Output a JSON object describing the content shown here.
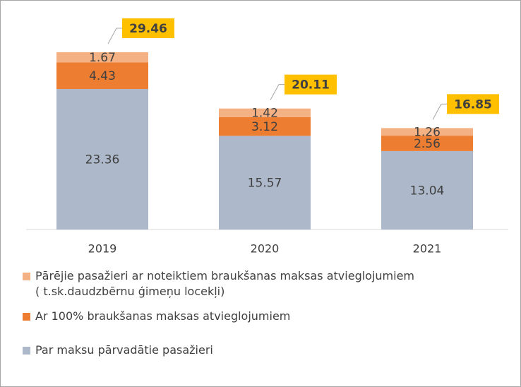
{
  "chart_data": {
    "type": "stacked-bar",
    "categories": [
      "2019",
      "2020",
      "2021"
    ],
    "series": [
      {
        "name": "Par maksu pārvadātie pasažieri",
        "color": "#adb9ca",
        "values": [
          23.36,
          15.57,
          13.04
        ]
      },
      {
        "name": "Ar 100% braukšanas maksas atvieglojumiem",
        "color": "#ed7d31",
        "values": [
          4.43,
          3.12,
          2.56
        ]
      },
      {
        "name": "Pārējie pasažieri ar noteiktiem braukšanas maksas atvieglojumiem\n( t.sk.daudzbērnu ģimeņu locekļi)",
        "color": "#f4b183",
        "values": [
          1.67,
          1.42,
          1.26
        ]
      }
    ],
    "totals": [
      29.46,
      20.11,
      16.85
    ],
    "total_color": "#ffc000"
  }
}
